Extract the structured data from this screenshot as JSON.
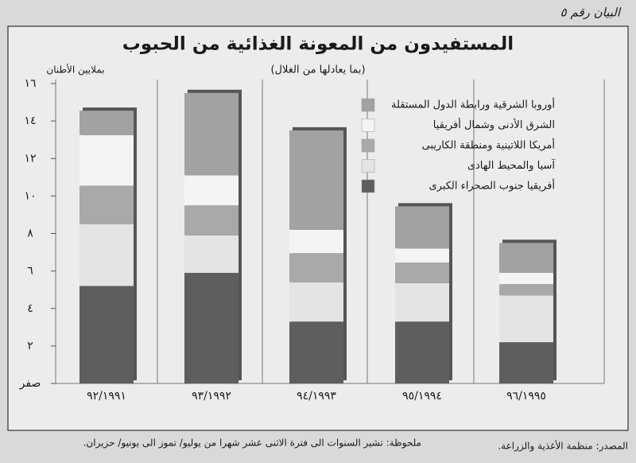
{
  "chart_data": {
    "type": "stacked_bar",
    "label": "البيان رقم ٥",
    "title": "المستفيدون من المعونة الغذائية من الحبوب",
    "subtitle": "(بما يعادلها من الغلال)",
    "y_label": "بملايين الأطنان",
    "categories": [
      "٩٢/١٩٩١",
      "٩٣/١٩٩٢",
      "٩٤/١٩٩٣",
      "٩٥/١٩٩٤",
      "٩٦/١٩٩٥"
    ],
    "series": [
      {
        "name": "أفريقيا جنوب الصحراء الكبرى",
        "color": "#5e5e5e",
        "values": [
          5.2,
          5.9,
          3.3,
          3.3,
          2.2
        ]
      },
      {
        "name": "آسيا والمحيط الهادى",
        "color": "#e4e4e4",
        "values": [
          3.3,
          2.0,
          2.1,
          2.05,
          2.5
        ]
      },
      {
        "name": "أمريكا اللاتينية ومنطقة الكاريبى",
        "color": "#a9a9a9",
        "values": [
          2.05,
          1.6,
          1.55,
          1.1,
          0.6
        ]
      },
      {
        "name": "الشرق الأدنى وشمال أفريقيا",
        "color": "#f4f4f4",
        "values": [
          2.7,
          1.6,
          1.25,
          0.75,
          0.6
        ]
      },
      {
        "name": "أوروبا الشرقية ورابطة الدول المستقلة",
        "color": "#a2a2a2",
        "values": [
          1.3,
          4.4,
          5.3,
          2.25,
          1.6
        ]
      }
    ],
    "ylim": [
      0,
      16
    ],
    "yticks": [
      {
        "value": 0,
        "label": "صفر"
      },
      {
        "value": 2,
        "label": "٢"
      },
      {
        "value": 4,
        "label": "٤"
      },
      {
        "value": 6,
        "label": "٦"
      },
      {
        "value": 8,
        "label": "٨"
      },
      {
        "value": 10,
        "label": "١٠"
      },
      {
        "value": 12,
        "label": "١٢"
      },
      {
        "value": 14,
        "label": "١٤"
      },
      {
        "value": 16,
        "label": "١٦"
      }
    ],
    "grid": false,
    "legend": "top-right",
    "source": "المصدر: منظمة الأغذية والزراعة.",
    "note": "ملحوظة: تشير السنوات الى فترة الاثنى عشر شهرا من يوليو/ تموز الى يونيو/ حزيران."
  }
}
